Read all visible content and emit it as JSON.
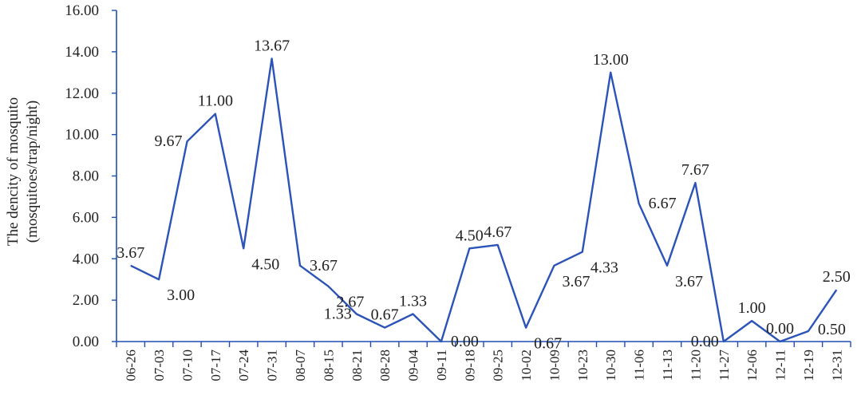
{
  "chart_data": {
    "type": "line",
    "title": "",
    "xlabel": "",
    "ylabel_lines": [
      "The dencity of mosquito",
      "(mosquitoes/trap/night)"
    ],
    "ylim": [
      0,
      16
    ],
    "yticks": [
      0,
      2,
      4,
      6,
      8,
      10,
      12,
      14,
      16
    ],
    "ytick_labels": [
      "0.00",
      "2.00",
      "4.00",
      "6.00",
      "8.00",
      "10.00",
      "12.00",
      "14.00",
      "16.00"
    ],
    "categories": [
      "06-26",
      "07-03",
      "07-10",
      "07-17",
      "07-24",
      "07-31",
      "08-07",
      "08-15",
      "08-21",
      "08-28",
      "09-04",
      "09-11",
      "09-18",
      "09-25",
      "10-02",
      "10-09",
      "10-23",
      "10-30",
      "11-06",
      "11-13",
      "11-20",
      "11-27",
      "12-06",
      "12-11",
      "12-19",
      "12-31"
    ],
    "values": [
      3.67,
      3.0,
      9.67,
      11.0,
      4.5,
      13.67,
      3.67,
      2.67,
      1.33,
      0.67,
      1.33,
      0.0,
      4.5,
      4.67,
      0.67,
      3.67,
      4.33,
      13.0,
      6.67,
      3.67,
      7.67,
      0.0,
      1.0,
      0.0,
      0.5,
      2.5
    ],
    "data_labels": [
      "3.67",
      "3.00",
      "9.67",
      "11.00",
      "4.50",
      "13.67",
      "3.67",
      "2.67",
      "1.33",
      "0.67",
      "1.33",
      "0.00",
      "4.50",
      "4.67",
      "0.67",
      "3.67",
      "4.33",
      "13.00",
      "6.67",
      "3.67",
      "7.67",
      "0.00",
      "1.00",
      "0.00",
      "0.50",
      "2.50"
    ],
    "label_positions": [
      "above",
      "below",
      "left",
      "above",
      "below",
      "above",
      "right",
      "below",
      "left",
      "above",
      "above",
      "right",
      "above",
      "above",
      "below",
      "below",
      "below",
      "above",
      "right",
      "below",
      "above",
      "left",
      "above",
      "above",
      "below",
      "above"
    ],
    "grid": false,
    "legend": "none",
    "colors": {
      "line": "#2b53b8",
      "axis": "#1f4fb3",
      "text": "#222222"
    }
  }
}
